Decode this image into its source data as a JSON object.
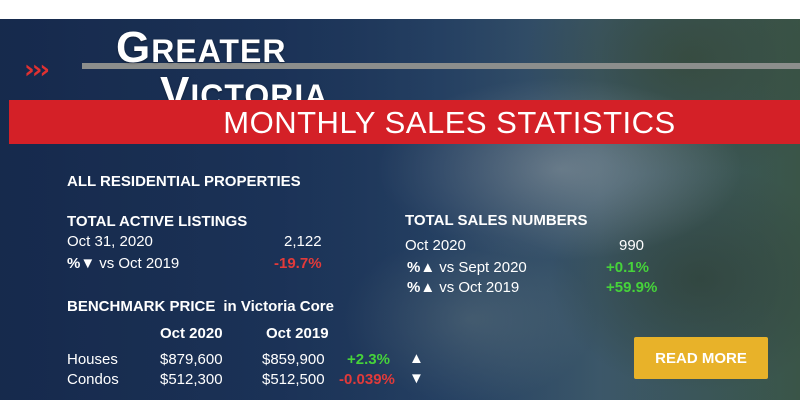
{
  "logo": {
    "greater_initial": "G",
    "greater_rest": "REATER",
    "victoria_initial": "V",
    "victoria_rest": "ICTORIA"
  },
  "chevrons": "›››",
  "banner_title": "MONTHLY SALES STATISTICS",
  "section_title": "ALL RESIDENTIAL PROPERTIES",
  "active_listings": {
    "heading": "TOTAL ACTIVE LISTINGS",
    "date_label": "Oct 31, 2020",
    "value": "2,122",
    "change_label_prefix": "%",
    "change_arrow": "▼",
    "change_label": "vs Oct 2019",
    "change_value": "-19.7%"
  },
  "sales_numbers": {
    "heading": "TOTAL SALES NUMBERS",
    "date_label": "Oct 2020",
    "value": "990",
    "rows": [
      {
        "prefix": "%",
        "arrow": "▲",
        "label": "vs Sept 2020",
        "value": "+0.1%"
      },
      {
        "prefix": "%",
        "arrow": "▲",
        "label": "vs Oct 2019",
        "value": "+59.9%"
      }
    ]
  },
  "benchmark": {
    "heading": "BENCHMARK PRICE",
    "subheading": "in Victoria Core",
    "col1": "Oct 2020",
    "col2": "Oct 2019",
    "rows": [
      {
        "label": "Houses",
        "v2020": "$879,600",
        "v2019": "$859,900",
        "change": "+2.3%",
        "arrow": "▲"
      },
      {
        "label": "Condos",
        "v2020": "$512,300",
        "v2019": "$512,500",
        "change": "-0.039%",
        "arrow": "▼"
      }
    ]
  },
  "read_more_label": "READ MORE",
  "colors": {
    "accent_red": "#d42027",
    "gold_button": "#e8b229",
    "positive": "#46d33a",
    "negative": "#e23a3a",
    "navy": "#1d3357"
  }
}
